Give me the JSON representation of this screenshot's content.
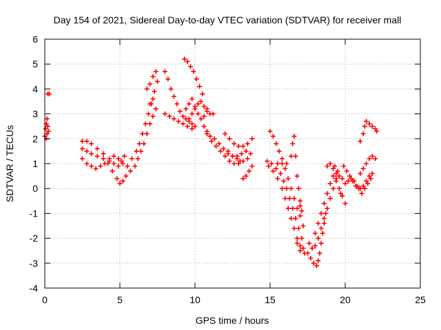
{
  "chart_data": {
    "type": "scatter",
    "title": "Day 154 of 2021, Sidereal Day-to-day VTEC variation (SDTVAR) for receiver mall",
    "xlabel": "GPS time / hours",
    "ylabel": "SDTVAR / TECUs",
    "xlim": [
      0,
      25
    ],
    "ylim": [
      -4,
      6
    ],
    "xticks": [
      0,
      5,
      10,
      15,
      20,
      25
    ],
    "yticks": [
      -4,
      -3,
      -2,
      -1,
      0,
      1,
      2,
      3,
      4,
      5,
      6
    ],
    "grid": true,
    "legend": "none",
    "marker": "+",
    "color": "#ff0000",
    "series": [
      {
        "points": [
          [
            0.0,
            2.1
          ],
          [
            0.05,
            2.4
          ],
          [
            0.1,
            2.6
          ],
          [
            0.15,
            2.8
          ],
          [
            0.2,
            2.5
          ],
          [
            0.25,
            2.3
          ],
          [
            0.15,
            2.2
          ],
          [
            0.1,
            2.0
          ],
          [
            0.2,
            3.8
          ],
          [
            0.3,
            3.8
          ],
          [
            2.5,
            1.9
          ],
          [
            2.8,
            1.9
          ],
          [
            3.1,
            1.8
          ],
          [
            3.5,
            1.6
          ],
          [
            3.9,
            1.4
          ],
          [
            4.3,
            1.2
          ],
          [
            4.6,
            1.0
          ],
          [
            4.9,
            0.9
          ],
          [
            5.1,
            1.1
          ],
          [
            5.3,
            1.3
          ],
          [
            2.5,
            1.6
          ],
          [
            2.8,
            1.5
          ],
          [
            3.1,
            1.4
          ],
          [
            3.5,
            1.3
          ],
          [
            3.9,
            1.2
          ],
          [
            4.2,
            1.0
          ],
          [
            4.5,
            0.7
          ],
          [
            4.8,
            0.4
          ],
          [
            5.0,
            0.2
          ],
          [
            5.2,
            0.3
          ],
          [
            2.5,
            1.2
          ],
          [
            2.8,
            1.0
          ],
          [
            3.1,
            0.9
          ],
          [
            3.4,
            0.8
          ],
          [
            3.7,
            0.9
          ],
          [
            4.0,
            1.0
          ],
          [
            4.3,
            1.1
          ],
          [
            4.6,
            1.3
          ],
          [
            4.9,
            1.2
          ],
          [
            5.2,
            1.0
          ],
          [
            5.4,
            0.5
          ],
          [
            5.7,
            0.7
          ],
          [
            6.0,
            0.9
          ],
          [
            6.2,
            1.2
          ],
          [
            6.4,
            1.5
          ],
          [
            6.6,
            1.8
          ],
          [
            6.8,
            2.2
          ],
          [
            7.0,
            2.6
          ],
          [
            7.2,
            2.9
          ],
          [
            7.4,
            3.2
          ],
          [
            5.5,
            0.9
          ],
          [
            5.8,
            1.2
          ],
          [
            6.1,
            1.5
          ],
          [
            6.3,
            1.8
          ],
          [
            6.5,
            2.2
          ],
          [
            6.7,
            2.6
          ],
          [
            6.9,
            3.0
          ],
          [
            7.1,
            3.4
          ],
          [
            7.3,
            3.9
          ],
          [
            7.5,
            4.3
          ],
          [
            6.8,
            4.0
          ],
          [
            7.0,
            4.2
          ],
          [
            7.2,
            4.5
          ],
          [
            7.4,
            4.7
          ],
          [
            7.0,
            3.4
          ],
          [
            7.2,
            3.6
          ],
          [
            8.0,
            4.7
          ],
          [
            8.2,
            4.4
          ],
          [
            8.4,
            4.0
          ],
          [
            8.6,
            3.7
          ],
          [
            8.8,
            3.4
          ],
          [
            9.0,
            3.1
          ],
          [
            9.2,
            2.9
          ],
          [
            9.4,
            2.8
          ],
          [
            9.6,
            2.7
          ],
          [
            9.8,
            2.6
          ],
          [
            8.0,
            3.0
          ],
          [
            8.3,
            2.9
          ],
          [
            8.6,
            2.8
          ],
          [
            8.9,
            2.7
          ],
          [
            9.2,
            2.6
          ],
          [
            9.5,
            2.5
          ],
          [
            9.8,
            2.4
          ],
          [
            10.0,
            2.5
          ],
          [
            9.3,
            5.2
          ],
          [
            9.5,
            5.1
          ],
          [
            9.7,
            4.9
          ],
          [
            9.9,
            4.7
          ],
          [
            10.1,
            4.4
          ],
          [
            10.3,
            4.1
          ],
          [
            10.5,
            3.8
          ],
          [
            9.4,
            3.2
          ],
          [
            9.6,
            3.4
          ],
          [
            9.8,
            3.6
          ],
          [
            10.0,
            3.3
          ],
          [
            10.2,
            3.0
          ],
          [
            10.4,
            2.8
          ],
          [
            10.6,
            2.9
          ],
          [
            10.8,
            3.1
          ],
          [
            11.0,
            3.0
          ],
          [
            11.2,
            3.0
          ],
          [
            9.6,
            2.8
          ],
          [
            9.8,
            3.0
          ],
          [
            10.0,
            3.2
          ],
          [
            10.2,
            3.4
          ],
          [
            10.4,
            3.5
          ],
          [
            10.6,
            3.3
          ],
          [
            10.8,
            3.2
          ],
          [
            10.6,
            2.5
          ],
          [
            10.8,
            2.3
          ],
          [
            11.0,
            2.1
          ],
          [
            11.3,
            2.0
          ],
          [
            11.6,
            1.8
          ],
          [
            11.9,
            1.6
          ],
          [
            12.2,
            1.4
          ],
          [
            12.5,
            1.3
          ],
          [
            12.8,
            1.2
          ],
          [
            13.0,
            1.1
          ],
          [
            10.8,
            2.2
          ],
          [
            11.1,
            1.9
          ],
          [
            11.4,
            1.7
          ],
          [
            11.7,
            1.5
          ],
          [
            12.0,
            1.3
          ],
          [
            12.3,
            1.1
          ],
          [
            12.6,
            1.0
          ],
          [
            12.9,
            1.0
          ],
          [
            13.2,
            1.1
          ],
          [
            13.5,
            1.2
          ],
          [
            12.0,
            2.2
          ],
          [
            12.3,
            2.0
          ],
          [
            12.6,
            1.8
          ],
          [
            12.9,
            1.7
          ],
          [
            13.2,
            1.7
          ],
          [
            13.5,
            1.8
          ],
          [
            13.8,
            2.0
          ],
          [
            12.2,
            1.5
          ],
          [
            12.5,
            1.3
          ],
          [
            12.8,
            1.3
          ],
          [
            13.1,
            1.4
          ],
          [
            13.4,
            1.5
          ],
          [
            13.7,
            1.4
          ],
          [
            13.2,
            0.4
          ],
          [
            13.4,
            0.5
          ],
          [
            13.6,
            0.7
          ],
          [
            13.8,
            0.9
          ],
          [
            14.8,
            1.1
          ],
          [
            15.1,
            1.0
          ],
          [
            15.4,
            0.8
          ],
          [
            15.7,
            0.6
          ],
          [
            15.9,
            0.3
          ],
          [
            16.1,
            0.0
          ],
          [
            16.3,
            -0.4
          ],
          [
            16.5,
            -0.8
          ],
          [
            16.7,
            -1.2
          ],
          [
            16.9,
            -1.6
          ],
          [
            14.9,
            0.9
          ],
          [
            15.2,
            0.7
          ],
          [
            15.5,
            0.4
          ],
          [
            15.8,
            0.0
          ],
          [
            16.0,
            -0.4
          ],
          [
            16.2,
            -0.8
          ],
          [
            16.4,
            -1.2
          ],
          [
            16.6,
            -1.6
          ],
          [
            16.8,
            -2.0
          ],
          [
            17.0,
            -2.3
          ],
          [
            15.0,
            2.3
          ],
          [
            15.2,
            2.1
          ],
          [
            15.4,
            1.8
          ],
          [
            15.6,
            1.5
          ],
          [
            15.8,
            1.2
          ],
          [
            16.0,
            0.8
          ],
          [
            16.2,
            0.4
          ],
          [
            16.4,
            0.0
          ],
          [
            16.6,
            -0.4
          ],
          [
            16.8,
            -0.8
          ],
          [
            17.0,
            -1.1
          ],
          [
            17.2,
            -1.5
          ],
          [
            17.1,
            -2.0
          ],
          [
            17.2,
            -2.4
          ],
          [
            17.3,
            -2.6
          ],
          [
            17.0,
            -2.5
          ],
          [
            16.8,
            -2.2
          ],
          [
            17.1,
            -0.9
          ],
          [
            17.0,
            -0.7
          ],
          [
            15.5,
            1.0
          ],
          [
            15.8,
            1.0
          ],
          [
            16.1,
            1.0
          ],
          [
            16.4,
            1.3
          ],
          [
            16.5,
            1.8
          ],
          [
            16.6,
            2.1
          ],
          [
            16.7,
            1.3
          ],
          [
            16.8,
            0.5
          ],
          [
            16.9,
            0.0
          ],
          [
            17.0,
            -0.5
          ],
          [
            17.5,
            -2.6
          ],
          [
            17.7,
            -2.8
          ],
          [
            17.9,
            -3.0
          ],
          [
            18.1,
            -3.1
          ],
          [
            18.2,
            -2.9
          ],
          [
            18.3,
            -2.6
          ],
          [
            18.4,
            -2.2
          ],
          [
            18.5,
            -1.8
          ],
          [
            18.6,
            -1.4
          ],
          [
            18.7,
            -1.0
          ],
          [
            17.6,
            -2.2
          ],
          [
            17.8,
            -2.4
          ],
          [
            18.0,
            -2.3
          ],
          [
            18.2,
            -2.0
          ],
          [
            18.4,
            -1.6
          ],
          [
            18.6,
            -1.2
          ],
          [
            18.8,
            -0.8
          ],
          [
            19.0,
            -0.4
          ],
          [
            19.2,
            0.0
          ],
          [
            19.4,
            0.3
          ],
          [
            18.0,
            -1.8
          ],
          [
            18.2,
            -1.4
          ],
          [
            18.4,
            -1.0
          ],
          [
            18.6,
            -0.6
          ],
          [
            18.8,
            -0.2
          ],
          [
            19.0,
            0.2
          ],
          [
            19.2,
            0.5
          ],
          [
            19.4,
            0.6
          ],
          [
            19.6,
            0.5
          ],
          [
            19.8,
            0.4
          ],
          [
            18.8,
            0.9
          ],
          [
            19.0,
            1.0
          ],
          [
            19.2,
            0.8
          ],
          [
            19.4,
            0.4
          ],
          [
            19.6,
            0.0
          ],
          [
            19.8,
            -0.3
          ],
          [
            20.0,
            -0.6
          ],
          [
            19.7,
            -0.2
          ],
          [
            19.5,
            0.7
          ],
          [
            19.3,
            0.9
          ],
          [
            19.9,
            0.9
          ],
          [
            20.1,
            0.7
          ],
          [
            20.3,
            0.5
          ],
          [
            20.5,
            0.3
          ],
          [
            20.7,
            0.1
          ],
          [
            20.9,
            0.0
          ],
          [
            21.1,
            -0.2
          ],
          [
            21.3,
            0.0
          ],
          [
            21.5,
            0.2
          ],
          [
            21.7,
            0.4
          ],
          [
            20.0,
            0.2
          ],
          [
            20.2,
            0.3
          ],
          [
            20.4,
            0.4
          ],
          [
            20.6,
            0.3
          ],
          [
            20.8,
            0.1
          ],
          [
            21.0,
            0.0
          ],
          [
            21.2,
            0.1
          ],
          [
            21.4,
            0.3
          ],
          [
            21.6,
            0.5
          ],
          [
            21.8,
            0.6
          ],
          [
            21.0,
            0.6
          ],
          [
            21.2,
            0.8
          ],
          [
            21.4,
            1.0
          ],
          [
            21.6,
            1.2
          ],
          [
            21.8,
            1.3
          ],
          [
            22.0,
            1.2
          ],
          [
            21.0,
            1.9
          ],
          [
            21.2,
            2.2
          ],
          [
            21.3,
            2.5
          ],
          [
            21.4,
            2.7
          ],
          [
            21.6,
            2.6
          ],
          [
            21.8,
            2.5
          ],
          [
            22.0,
            2.4
          ],
          [
            22.1,
            2.3
          ]
        ]
      }
    ]
  }
}
